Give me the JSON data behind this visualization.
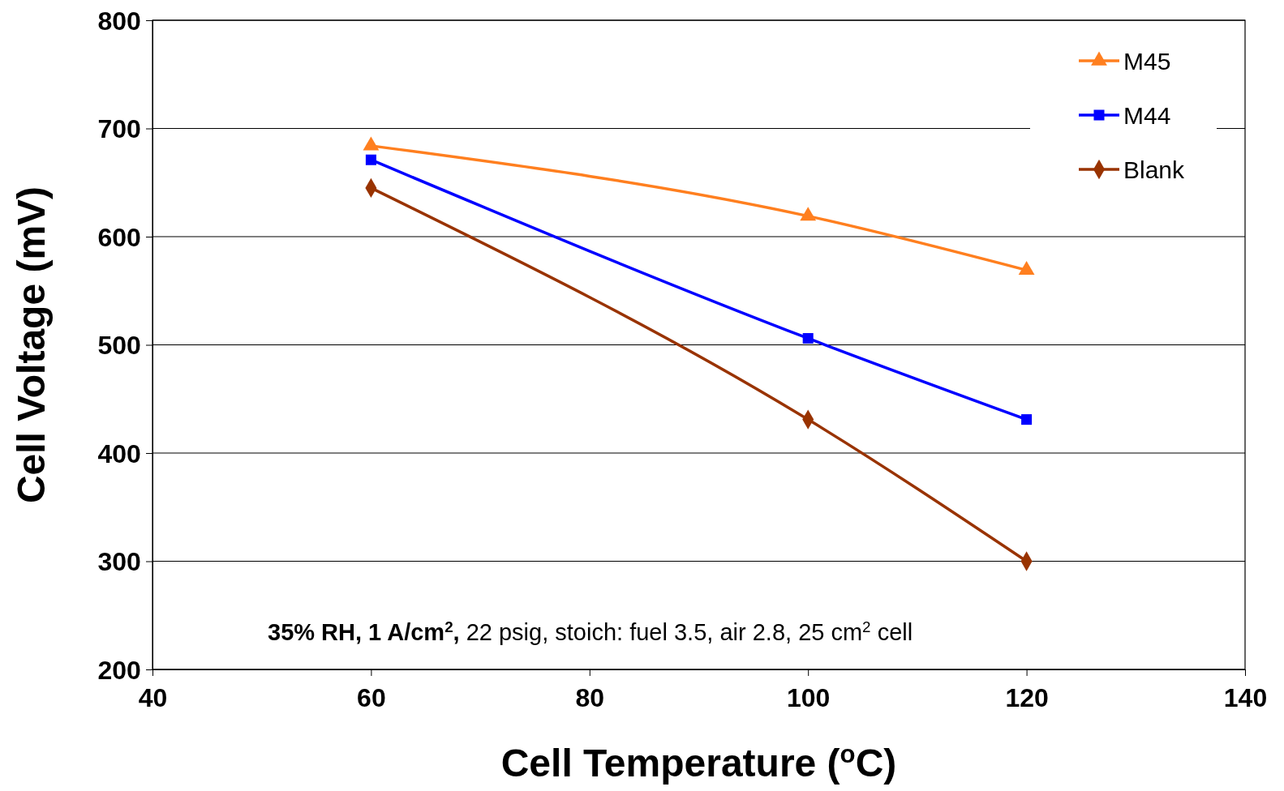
{
  "chart_data": {
    "type": "line",
    "xlabel": "Cell Temperature ($^{o}$C)",
    "ylabel": "Cell Voltage (mV)",
    "x": [
      60,
      100,
      120
    ],
    "series": [
      {
        "name": "M45",
        "color": "#ff7f1f",
        "marker": "triangle",
        "values": [
          684,
          619,
          569
        ]
      },
      {
        "name": "M44",
        "color": "#0000ff",
        "marker": "square",
        "values": [
          671,
          506,
          431
        ]
      },
      {
        "name": "Blank",
        "color": "#993300",
        "marker": "diamond",
        "values": [
          645,
          431,
          300
        ]
      }
    ],
    "xlim": [
      40,
      140
    ],
    "xticks": [
      40,
      60,
      80,
      100,
      120,
      140
    ],
    "ylim": [
      200,
      800
    ],
    "yticks": [
      200,
      300,
      400,
      500,
      600,
      700,
      800
    ],
    "grid": "y",
    "legend": "top right",
    "line_style": "solid",
    "annotations": [
      "35% RH, 1 A/cm$^{2}$,",
      "22 psig, stoich: fuel 3.5, air 2.8, 25 cm$^{2}$ cell"
    ]
  }
}
